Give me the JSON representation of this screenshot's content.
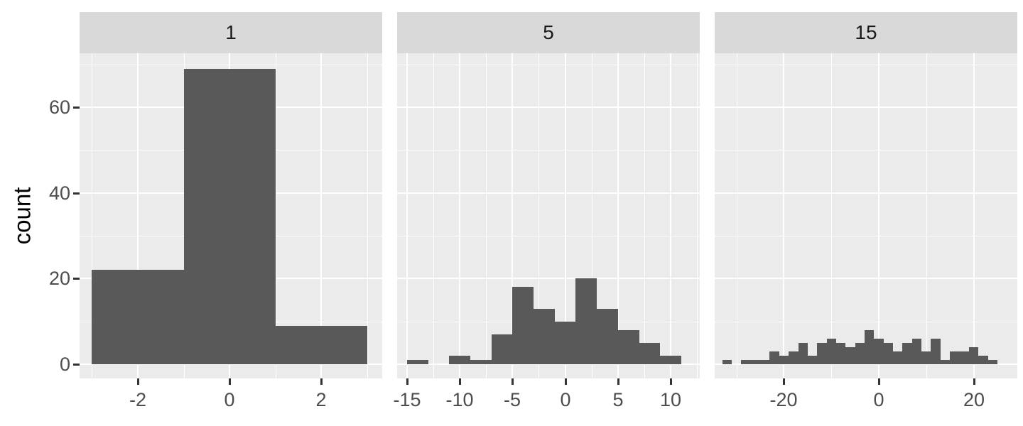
{
  "chart_data": {
    "type": "bar",
    "subtype": "faceted-histogram",
    "title": "",
    "xlabel": "",
    "ylabel": "count",
    "grid": true,
    "legend": false,
    "y_ticks": [
      0,
      20,
      40,
      60
    ],
    "y_minor": [
      10,
      30,
      50,
      70
    ],
    "ylim": [
      -3.3,
      72.6
    ],
    "bin_width": 2,
    "facets": [
      {
        "label": "1",
        "bin_start": -3,
        "counts": [
          22,
          69,
          9
        ],
        "xlim": [
          -3.27,
          3.33
        ],
        "x_ticks": [
          -2,
          0,
          2
        ],
        "x_minor": [
          -3,
          -1,
          1,
          3
        ]
      },
      {
        "label": "5",
        "bin_start": -15,
        "counts": [
          1,
          0,
          2,
          1,
          7,
          18,
          13,
          10,
          20,
          13,
          8,
          5,
          2
        ],
        "xlim": [
          -15.94,
          12.76
        ],
        "x_ticks": [
          -15,
          -10,
          -5,
          0,
          5,
          10
        ],
        "x_minor": [
          -12.5,
          -7.5,
          -2.5,
          2.5,
          7.5,
          12.5
        ]
      },
      {
        "label": "15",
        "bin_start": -33,
        "counts": [
          1,
          0,
          1,
          1,
          1,
          3,
          2,
          3,
          5,
          2,
          5,
          6,
          5,
          4,
          5,
          8,
          6,
          5,
          3,
          5,
          6,
          3,
          6,
          1,
          3,
          3,
          4,
          2,
          1
        ],
        "xlim": [
          -34.6,
          29.2
        ],
        "x_ticks": [
          -20,
          0,
          20
        ],
        "x_minor": [
          -30,
          -10,
          10
        ]
      }
    ],
    "colors": {
      "bar": "#595959",
      "panel_bg": "#ebebeb",
      "strip_bg": "#d9d9d9",
      "gridline": "#ffffff",
      "tick_text": "#4d4d4d",
      "strip_text": "#1a1a1a",
      "axis_title": "#000000",
      "tick_mark": "#333333"
    }
  }
}
